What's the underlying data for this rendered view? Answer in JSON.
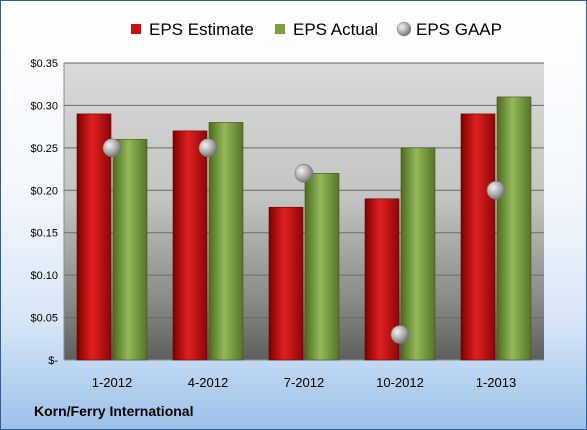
{
  "chart_data": {
    "type": "bar",
    "categories": [
      "1-2012",
      "4-2012",
      "7-2012",
      "10-2012",
      "1-2013"
    ],
    "series": [
      {
        "name": "EPS Estimate",
        "kind": "bar",
        "color": "#cc1111",
        "values": [
          0.29,
          0.27,
          0.18,
          0.19,
          0.29
        ]
      },
      {
        "name": "EPS Actual",
        "kind": "bar",
        "color": "#7a9e3a",
        "values": [
          0.26,
          0.28,
          0.22,
          0.25,
          0.31
        ]
      },
      {
        "name": "EPS GAAP",
        "kind": "marker",
        "color": "#a0a0a0",
        "values": [
          0.25,
          0.25,
          0.22,
          0.03,
          0.2
        ]
      }
    ],
    "ylim": [
      0,
      0.35
    ],
    "y_ticks": [
      0,
      0.05,
      0.1,
      0.15,
      0.2,
      0.25,
      0.3,
      0.35
    ],
    "y_tick_labels": [
      "$-",
      "$0.05",
      "$0.10",
      "$0.15",
      "$0.20",
      "$0.25",
      "$0.30",
      "$0.35"
    ],
    "grid": true,
    "legend_position": "top"
  },
  "footer_label": "Korn/Ferry International"
}
